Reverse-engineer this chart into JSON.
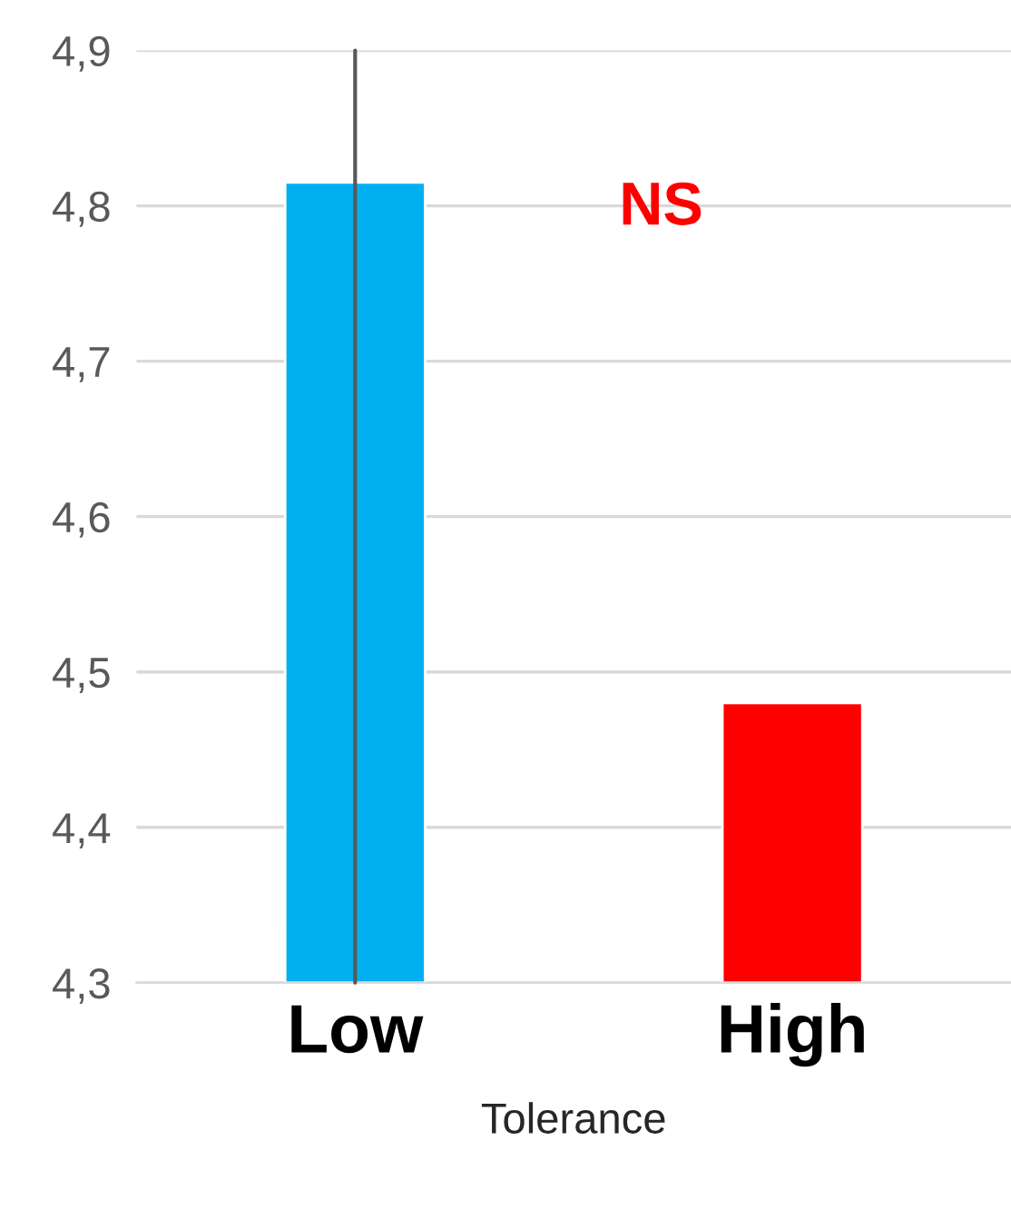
{
  "chart_data": {
    "type": "bar",
    "xlabel": "Tolerance",
    "categories": [
      "Low",
      "High"
    ],
    "values": [
      4.815,
      4.48
    ],
    "colors": [
      "#00b0f0",
      "#ff0000"
    ],
    "errors": [
      [
        4.3,
        4.9
      ],
      null
    ],
    "ylim": [
      4.3,
      4.9
    ],
    "yticks": [
      {
        "value": 4.3,
        "label": "4,3"
      },
      {
        "value": 4.4,
        "label": "4,4"
      },
      {
        "value": 4.5,
        "label": "4,5"
      },
      {
        "value": 4.6,
        "label": "4,6"
      },
      {
        "value": 4.7,
        "label": "4,7"
      },
      {
        "value": 4.8,
        "label": "4,8"
      },
      {
        "value": 4.9,
        "label": "4,9"
      }
    ],
    "grid": "y",
    "annotations": [
      "NS"
    ]
  }
}
